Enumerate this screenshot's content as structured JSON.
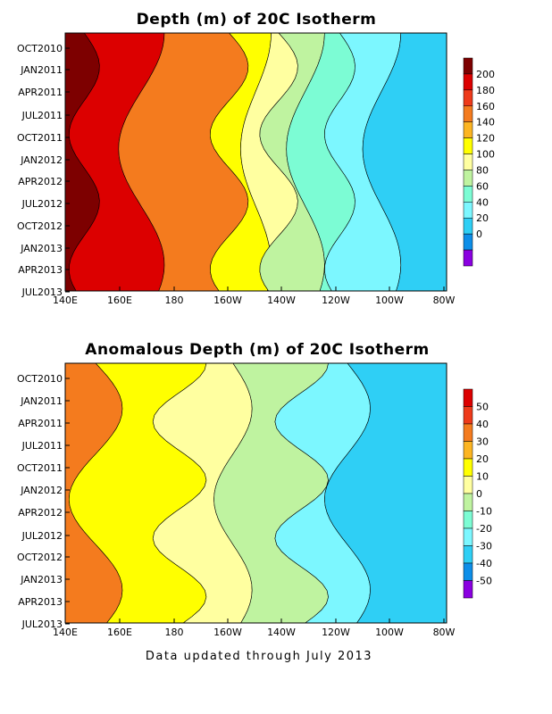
{
  "chart_data": [
    {
      "type": "heatmap",
      "title": "Depth (m) of 20C Isotherm",
      "x_tick_labels": [
        "140E",
        "160E",
        "180",
        "160W",
        "140W",
        "120W",
        "100W",
        "80W"
      ],
      "y_tick_labels": [
        "OCT2010",
        "JAN2011",
        "APR2011",
        "JUL2011",
        "OCT2011",
        "JAN2012",
        "APR2012",
        "JUL2012",
        "OCT2012",
        "JAN2013",
        "APR2013",
        "JUL2013"
      ],
      "colorbar": {
        "labels": [
          "200",
          "180",
          "160",
          "140",
          "120",
          "100",
          "80",
          "60",
          "40",
          "20",
          "0"
        ],
        "colors": [
          "#7d0000",
          "#dc0000",
          "#ee3a1a",
          "#f47b1e",
          "#fcb522",
          "#ffff00",
          "#ffffa0",
          "#bff3a0",
          "#7cfcd4",
          "#7cf7ff",
          "#2fcff5",
          "#0d8ee8",
          "#8a00e0"
        ]
      },
      "zones_west_to_east": [
        {
          "value_range": "180-200",
          "color": "#7d0000"
        },
        {
          "value_range": "160-180",
          "color": "#dc0000"
        },
        {
          "value_range": "140-160",
          "color": "#f47b1e"
        },
        {
          "value_range": "120-140",
          "color": "#ffff00"
        },
        {
          "value_range": "100-120",
          "color": "#ffffa0"
        },
        {
          "value_range": "80-100",
          "color": "#bff3a0"
        },
        {
          "value_range": "60-80",
          "color": "#7cfcd4"
        },
        {
          "value_range": "40-60",
          "color": "#7cf7ff"
        },
        {
          "value_range": "20-40",
          "color": "#2fcff5"
        }
      ]
    },
    {
      "type": "heatmap",
      "title": "Anomalous Depth (m) of 20C Isotherm",
      "x_tick_labels": [
        "140E",
        "160E",
        "180",
        "160W",
        "140W",
        "120W",
        "100W",
        "80W"
      ],
      "y_tick_labels": [
        "OCT2010",
        "JAN2011",
        "APR2011",
        "JUL2011",
        "OCT2011",
        "JAN2012",
        "APR2012",
        "JUL2012",
        "OCT2012",
        "JAN2013",
        "APR2013",
        "JUL2013"
      ],
      "colorbar": {
        "labels": [
          "50",
          "40",
          "30",
          "20",
          "10",
          "0",
          "-10",
          "-20",
          "-30",
          "-40",
          "-50"
        ],
        "colors": [
          "#dc0000",
          "#ee3a1a",
          "#f47b1e",
          "#fcb522",
          "#ffff00",
          "#ffffa0",
          "#bff3a0",
          "#7cfcd4",
          "#7cf7ff",
          "#2fcff5",
          "#0d8ee8",
          "#8a00e0"
        ]
      },
      "zones_west_to_east": [
        {
          "value_range": "20-30",
          "color": "#f47b1e"
        },
        {
          "value_range": "10-20",
          "color": "#ffff00"
        },
        {
          "value_range": "0-10",
          "color": "#ffffa0"
        },
        {
          "value_range": "-10-0",
          "color": "#bff3a0"
        },
        {
          "value_range": "-20--10",
          "color": "#7cf7ff"
        },
        {
          "value_range": "-30--20",
          "color": "#2fcff5"
        }
      ]
    }
  ],
  "footer": "Data updated through July 2013"
}
